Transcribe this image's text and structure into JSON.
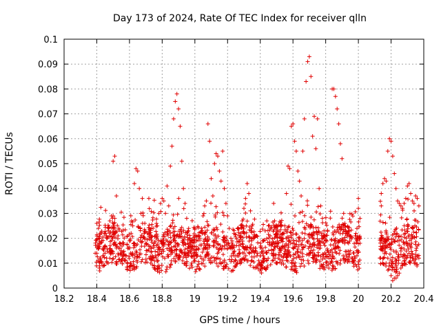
{
  "chart_data": {
    "type": "scatter",
    "title": "Day 173 of 2024, Rate Of TEC Index for receiver qlln",
    "xlabel": "GPS time / hours",
    "ylabel": "ROTI / TECUs",
    "xlim": [
      18.2,
      20.4
    ],
    "ylim": [
      0,
      0.1
    ],
    "x_ticks": [
      18.2,
      18.4,
      18.6,
      18.8,
      19.0,
      19.2,
      19.4,
      19.6,
      19.8,
      20.0,
      20.2,
      20.4
    ],
    "x_tick_labels": [
      "18.2",
      "18.4",
      "18.6",
      "18.8",
      "19",
      "19.2",
      "19.4",
      "19.6",
      "19.8",
      "20",
      "20.2",
      "20.4"
    ],
    "y_ticks": [
      0,
      0.01,
      0.02,
      0.03,
      0.04,
      0.05,
      0.06,
      0.07,
      0.08,
      0.09,
      0.1
    ],
    "y_tick_labels": [
      "0",
      "0.01",
      "0.02",
      "0.03",
      "0.04",
      "0.05",
      "0.06",
      "0.07",
      "0.08",
      "0.09",
      "0.1"
    ],
    "grid": true,
    "marker": "+",
    "marker_color": "#e00000",
    "series": [
      {
        "name": "ROTI",
        "points": [
          [
            18.4,
            0.026
          ],
          [
            18.41,
            0.024
          ],
          [
            18.42,
            0.022
          ],
          [
            18.43,
            0.019
          ],
          [
            18.44,
            0.016
          ],
          [
            18.45,
            0.014
          ],
          [
            18.46,
            0.012
          ],
          [
            18.47,
            0.01
          ],
          [
            18.48,
            0.012
          ],
          [
            18.49,
            0.014
          ],
          [
            18.4,
            0.014
          ],
          [
            18.41,
            0.016
          ],
          [
            18.42,
            0.012
          ],
          [
            18.43,
            0.01
          ],
          [
            18.44,
            0.013
          ],
          [
            18.45,
            0.017
          ],
          [
            18.46,
            0.02
          ],
          [
            18.47,
            0.023
          ],
          [
            18.48,
            0.027
          ],
          [
            18.49,
            0.029
          ],
          [
            18.5,
            0.029
          ],
          [
            18.51,
            0.028
          ],
          [
            18.5,
            0.051
          ],
          [
            18.51,
            0.053
          ],
          [
            18.52,
            0.037
          ],
          [
            18.53,
            0.021
          ],
          [
            18.54,
            0.018
          ],
          [
            18.55,
            0.015
          ],
          [
            18.56,
            0.012
          ],
          [
            18.57,
            0.011
          ],
          [
            18.58,
            0.013
          ],
          [
            18.59,
            0.016
          ],
          [
            18.6,
            0.019
          ],
          [
            18.61,
            0.022
          ],
          [
            18.62,
            0.025
          ],
          [
            18.63,
            0.042
          ],
          [
            18.64,
            0.048
          ],
          [
            18.65,
            0.047
          ],
          [
            18.66,
            0.04
          ],
          [
            18.67,
            0.03
          ],
          [
            18.68,
            0.026
          ],
          [
            18.69,
            0.022
          ],
          [
            18.7,
            0.018
          ],
          [
            18.71,
            0.015
          ],
          [
            18.72,
            0.012
          ],
          [
            18.73,
            0.01
          ],
          [
            18.74,
            0.013
          ],
          [
            18.75,
            0.017
          ],
          [
            18.76,
            0.021
          ],
          [
            18.77,
            0.025
          ],
          [
            18.78,
            0.03
          ],
          [
            18.79,
            0.034
          ],
          [
            18.8,
            0.036
          ],
          [
            18.81,
            0.035
          ],
          [
            18.82,
            0.03
          ],
          [
            18.83,
            0.041
          ],
          [
            18.84,
            0.033
          ],
          [
            18.85,
            0.049
          ],
          [
            18.86,
            0.057
          ],
          [
            18.87,
            0.068
          ],
          [
            18.88,
            0.075
          ],
          [
            18.89,
            0.078
          ],
          [
            18.9,
            0.072
          ],
          [
            18.91,
            0.065
          ],
          [
            18.92,
            0.051
          ],
          [
            18.93,
            0.04
          ],
          [
            18.94,
            0.034
          ],
          [
            18.95,
            0.028
          ],
          [
            18.96,
            0.023
          ],
          [
            18.97,
            0.019
          ],
          [
            18.98,
            0.016
          ],
          [
            18.99,
            0.013
          ],
          [
            19.0,
            0.011
          ],
          [
            19.01,
            0.013
          ],
          [
            19.02,
            0.016
          ],
          [
            19.03,
            0.02
          ],
          [
            19.04,
            0.024
          ],
          [
            19.05,
            0.029
          ],
          [
            19.06,
            0.033
          ],
          [
            19.07,
            0.035
          ],
          [
            19.08,
            0.066
          ],
          [
            19.09,
            0.059
          ],
          [
            19.1,
            0.044
          ],
          [
            19.11,
            0.037
          ],
          [
            19.12,
            0.05
          ],
          [
            19.13,
            0.054
          ],
          [
            19.14,
            0.053
          ],
          [
            19.15,
            0.047
          ],
          [
            19.16,
            0.043
          ],
          [
            19.17,
            0.055
          ],
          [
            19.18,
            0.04
          ],
          [
            19.19,
            0.034
          ],
          [
            19.2,
            0.029
          ],
          [
            19.21,
            0.024
          ],
          [
            19.22,
            0.02
          ],
          [
            19.23,
            0.016
          ],
          [
            19.24,
            0.013
          ],
          [
            19.25,
            0.011
          ],
          [
            19.26,
            0.013
          ],
          [
            19.27,
            0.017
          ],
          [
            19.28,
            0.022
          ],
          [
            19.29,
            0.027
          ],
          [
            19.3,
            0.032
          ],
          [
            19.31,
            0.036
          ],
          [
            19.32,
            0.042
          ],
          [
            19.33,
            0.038
          ],
          [
            19.34,
            0.031
          ],
          [
            19.35,
            0.025
          ],
          [
            19.36,
            0.02
          ],
          [
            19.37,
            0.016
          ],
          [
            19.38,
            0.013
          ],
          [
            19.39,
            0.011
          ],
          [
            19.4,
            0.013
          ],
          [
            19.41,
            0.016
          ],
          [
            19.42,
            0.019
          ],
          [
            19.43,
            0.023
          ],
          [
            19.44,
            0.027
          ],
          [
            19.45,
            0.025
          ],
          [
            19.46,
            0.021
          ],
          [
            19.47,
            0.018
          ],
          [
            19.48,
            0.015
          ],
          [
            19.49,
            0.012
          ],
          [
            19.5,
            0.01
          ],
          [
            19.51,
            0.012
          ],
          [
            19.52,
            0.015
          ],
          [
            19.53,
            0.019
          ],
          [
            19.54,
            0.022
          ],
          [
            19.55,
            0.025
          ],
          [
            19.56,
            0.038
          ],
          [
            19.57,
            0.049
          ],
          [
            19.58,
            0.048
          ],
          [
            19.59,
            0.065
          ],
          [
            19.6,
            0.066
          ],
          [
            19.61,
            0.059
          ],
          [
            19.62,
            0.055
          ],
          [
            19.63,
            0.047
          ],
          [
            19.64,
            0.043
          ],
          [
            19.65,
            0.037
          ],
          [
            19.66,
            0.055
          ],
          [
            19.67,
            0.068
          ],
          [
            19.68,
            0.083
          ],
          [
            19.69,
            0.091
          ],
          [
            19.7,
            0.093
          ],
          [
            19.71,
            0.085
          ],
          [
            19.72,
            0.061
          ],
          [
            19.73,
            0.069
          ],
          [
            19.74,
            0.056
          ],
          [
            19.75,
            0.068
          ],
          [
            19.76,
            0.04
          ],
          [
            19.77,
            0.033
          ],
          [
            19.78,
            0.028
          ],
          [
            19.79,
            0.023
          ],
          [
            19.8,
            0.019
          ],
          [
            19.81,
            0.015
          ],
          [
            19.82,
            0.012
          ],
          [
            19.83,
            0.01
          ],
          [
            19.84,
            0.08
          ],
          [
            19.85,
            0.08
          ],
          [
            19.86,
            0.077
          ],
          [
            19.87,
            0.072
          ],
          [
            19.88,
            0.066
          ],
          [
            19.89,
            0.058
          ],
          [
            19.9,
            0.052
          ],
          [
            19.91,
            0.03
          ],
          [
            19.92,
            0.025
          ],
          [
            19.93,
            0.021
          ],
          [
            19.94,
            0.018
          ],
          [
            19.95,
            0.015
          ],
          [
            19.96,
            0.012
          ],
          [
            19.97,
            0.01
          ],
          [
            19.98,
            0.012
          ],
          [
            19.99,
            0.015
          ],
          [
            20.0,
            0.036
          ],
          [
            20.0,
            0.032
          ],
          [
            20.01,
            0.028
          ],
          [
            20.01,
            0.02
          ],
          [
            20.01,
            0.018
          ],
          [
            20.14,
            0.033
          ],
          [
            20.14,
            0.038
          ],
          [
            20.15,
            0.042
          ],
          [
            20.16,
            0.044
          ],
          [
            20.17,
            0.043
          ],
          [
            20.18,
            0.055
          ],
          [
            20.19,
            0.06
          ],
          [
            20.2,
            0.059
          ],
          [
            20.21,
            0.053
          ],
          [
            20.22,
            0.046
          ],
          [
            20.23,
            0.04
          ],
          [
            20.24,
            0.035
          ],
          [
            20.25,
            0.034
          ],
          [
            20.26,
            0.033
          ],
          [
            20.27,
            0.032
          ],
          [
            20.28,
            0.034
          ],
          [
            20.29,
            0.036
          ],
          [
            20.3,
            0.041
          ],
          [
            20.31,
            0.042
          ],
          [
            20.32,
            0.038
          ],
          [
            20.33,
            0.035
          ],
          [
            20.34,
            0.034
          ],
          [
            20.35,
            0.037
          ],
          [
            20.36,
            0.036
          ],
          [
            20.37,
            0.033
          ],
          [
            20.14,
            0.02
          ],
          [
            20.15,
            0.018
          ],
          [
            20.16,
            0.016
          ],
          [
            20.17,
            0.014
          ],
          [
            20.18,
            0.012
          ],
          [
            20.19,
            0.01
          ],
          [
            20.2,
            0.005
          ],
          [
            20.21,
            0.003
          ],
          [
            20.22,
            0.004
          ],
          [
            20.23,
            0.004
          ],
          [
            20.24,
            0.005
          ],
          [
            20.25,
            0.006
          ],
          [
            20.26,
            0.008
          ],
          [
            20.27,
            0.009
          ],
          [
            20.28,
            0.011
          ],
          [
            20.29,
            0.012
          ],
          [
            20.3,
            0.013
          ],
          [
            20.31,
            0.014
          ],
          [
            20.32,
            0.013
          ],
          [
            20.33,
            0.012
          ],
          [
            20.34,
            0.011
          ],
          [
            20.35,
            0.012
          ],
          [
            20.36,
            0.013
          ],
          [
            20.37,
            0.012
          ]
        ]
      }
    ],
    "dense_band": {
      "note": "many additional overlapping samples between roughly 0.007 and 0.035 across both time segments",
      "segments": [
        [
          18.39,
          20.01
        ],
        [
          20.13,
          20.37
        ]
      ]
    }
  }
}
